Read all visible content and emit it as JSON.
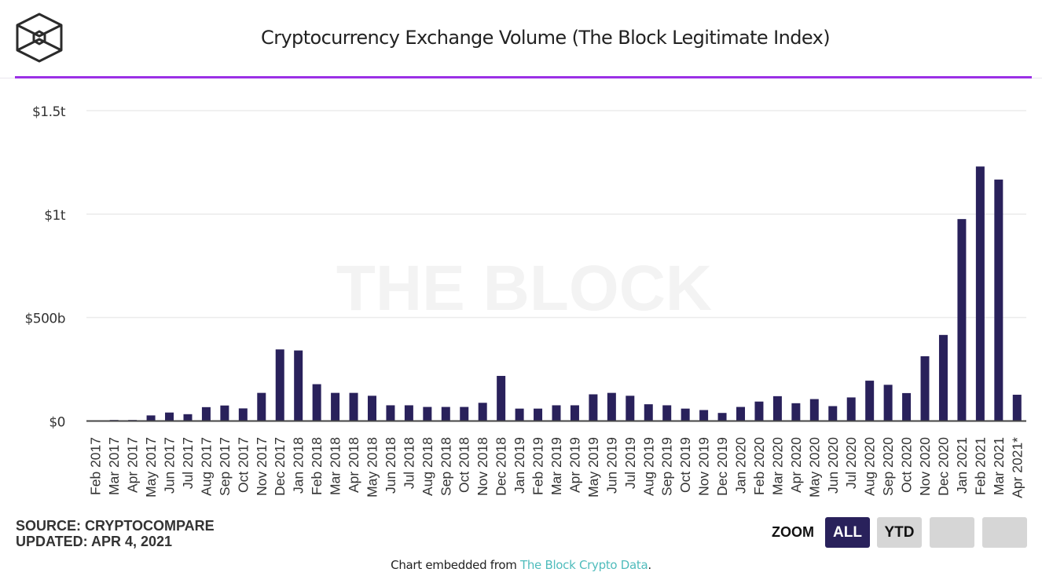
{
  "header": {
    "logo": "the-block-cube-logo",
    "title": "Cryptocurrency Exchange Volume (The Block Legitimate Index)"
  },
  "colors": {
    "bar": "#29215b",
    "accent_rule": "#9b30e6",
    "link": "#4fbcbc",
    "watermark": "#f3f3f3"
  },
  "chart_data": {
    "type": "bar",
    "title": "Cryptocurrency Exchange Volume (The Block Legitimate Index)",
    "watermark": "THE BLOCK",
    "xlabel": "",
    "ylabel": "",
    "unit": "billions USD",
    "ylim": [
      0,
      1500
    ],
    "yticks": [
      {
        "value": 0,
        "label": "$0"
      },
      {
        "value": 500,
        "label": "$500b"
      },
      {
        "value": 1000,
        "label": "$1t"
      },
      {
        "value": 1500,
        "label": "$1.5t"
      }
    ],
    "grid": true,
    "categories": [
      "Feb 2017",
      "Mar 2017",
      "Apr 2017",
      "May 2017",
      "Jun 2017",
      "Jul 2017",
      "Aug 2017",
      "Sep 2017",
      "Oct 2017",
      "Nov 2017",
      "Dec 2017",
      "Jan 2018",
      "Feb 2018",
      "Mar 2018",
      "Apr 2018",
      "May 2018",
      "Jun 2018",
      "Jul 2018",
      "Aug 2018",
      "Sep 2018",
      "Oct 2018",
      "Nov 2018",
      "Dec 2018",
      "Jan 2019",
      "Feb 2019",
      "Mar 2019",
      "Apr 2019",
      "May 2019",
      "Jun 2019",
      "Jul 2019",
      "Aug 2019",
      "Sep 2019",
      "Oct 2019",
      "Nov 2019",
      "Dec 2019",
      "Jan 2020",
      "Feb 2020",
      "Mar 2020",
      "Apr 2020",
      "May 2020",
      "Jun 2020",
      "Jul 2020",
      "Aug 2020",
      "Sep 2020",
      "Oct 2020",
      "Nov 2020",
      "Dec 2020",
      "Jan 2021",
      "Feb 2021",
      "Mar 2021",
      "Apr 2021*"
    ],
    "series": [
      {
        "name": "Exchange Volume",
        "values": [
          1,
          5,
          5,
          27,
          41,
          33,
          67,
          75,
          61,
          136,
          346,
          341,
          178,
          136,
          136,
          122,
          76,
          76,
          68,
          68,
          68,
          88,
          218,
          60,
          60,
          76,
          76,
          129,
          136,
          122,
          81,
          76,
          60,
          53,
          39,
          68,
          94,
          120,
          86,
          106,
          72,
          114,
          195,
          175,
          135,
          313,
          416,
          976,
          1230,
          1167,
          127
        ]
      }
    ]
  },
  "footer": {
    "source": "SOURCE: CRYPTOCOMPARE",
    "updated": "UPDATED: APR 4, 2021",
    "zoom_label": "ZOOM",
    "zoom_buttons": [
      {
        "label": "ALL",
        "active": true
      },
      {
        "label": "YTD",
        "active": false
      },
      {
        "label": "",
        "active": false
      },
      {
        "label": "",
        "active": false
      }
    ],
    "embed_prefix": "Chart embedded from ",
    "embed_link": "The Block Crypto Data",
    "embed_suffix": "."
  }
}
